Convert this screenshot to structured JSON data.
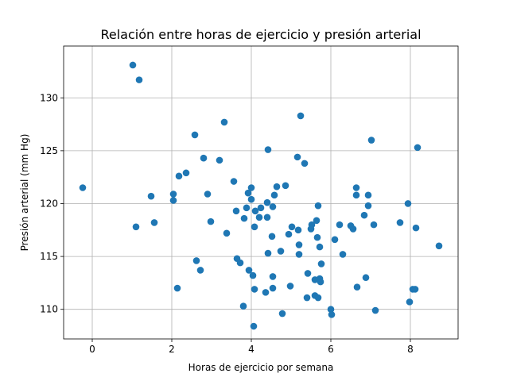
{
  "chart_data": {
    "type": "scatter",
    "title": "Relación entre horas de ejercicio y presión arterial",
    "xlabel": "Horas de ejercicio por semana",
    "ylabel": "Presión arterial (mm Hg)",
    "xlim": [
      -0.72,
      9.2
    ],
    "ylim": [
      107.2,
      134.9
    ],
    "x_ticks": [
      0,
      2,
      4,
      6,
      8
    ],
    "y_ticks": [
      110,
      115,
      120,
      125,
      130
    ],
    "grid": true,
    "marker_color": "#1f77b4",
    "points": [
      {
        "x": 1.02,
        "y": 133.1
      },
      {
        "x": 1.18,
        "y": 131.7
      },
      {
        "x": -0.24,
        "y": 121.5
      },
      {
        "x": 1.1,
        "y": 117.8
      },
      {
        "x": 1.48,
        "y": 120.7
      },
      {
        "x": 1.56,
        "y": 118.2
      },
      {
        "x": 2.04,
        "y": 120.9
      },
      {
        "x": 2.04,
        "y": 120.3
      },
      {
        "x": 2.18,
        "y": 122.6
      },
      {
        "x": 2.36,
        "y": 122.9
      },
      {
        "x": 2.14,
        "y": 112.0
      },
      {
        "x": 2.58,
        "y": 126.5
      },
      {
        "x": 2.62,
        "y": 114.6
      },
      {
        "x": 2.72,
        "y": 113.7
      },
      {
        "x": 2.8,
        "y": 124.3
      },
      {
        "x": 2.9,
        "y": 120.9
      },
      {
        "x": 2.98,
        "y": 118.3
      },
      {
        "x": 3.2,
        "y": 124.1
      },
      {
        "x": 3.32,
        "y": 127.7
      },
      {
        "x": 3.38,
        "y": 117.2
      },
      {
        "x": 3.56,
        "y": 122.1
      },
      {
        "x": 3.62,
        "y": 119.3
      },
      {
        "x": 3.64,
        "y": 114.8
      },
      {
        "x": 3.72,
        "y": 114.4
      },
      {
        "x": 3.8,
        "y": 110.3
      },
      {
        "x": 3.82,
        "y": 118.6
      },
      {
        "x": 3.88,
        "y": 119.6
      },
      {
        "x": 3.92,
        "y": 121.0
      },
      {
        "x": 3.94,
        "y": 113.7
      },
      {
        "x": 4.0,
        "y": 121.5
      },
      {
        "x": 4.0,
        "y": 120.4
      },
      {
        "x": 4.04,
        "y": 113.2
      },
      {
        "x": 4.06,
        "y": 108.4
      },
      {
        "x": 4.08,
        "y": 111.9
      },
      {
        "x": 4.08,
        "y": 117.8
      },
      {
        "x": 4.1,
        "y": 119.3
      },
      {
        "x": 4.2,
        "y": 118.7
      },
      {
        "x": 4.24,
        "y": 119.6
      },
      {
        "x": 4.36,
        "y": 111.6
      },
      {
        "x": 4.4,
        "y": 118.7
      },
      {
        "x": 4.4,
        "y": 120.1
      },
      {
        "x": 4.42,
        "y": 125.1
      },
      {
        "x": 4.42,
        "y": 115.3
      },
      {
        "x": 4.52,
        "y": 116.9
      },
      {
        "x": 4.54,
        "y": 113.1
      },
      {
        "x": 4.54,
        "y": 112.0
      },
      {
        "x": 4.54,
        "y": 119.7
      },
      {
        "x": 4.58,
        "y": 120.8
      },
      {
        "x": 4.64,
        "y": 121.6
      },
      {
        "x": 4.74,
        "y": 115.5
      },
      {
        "x": 4.78,
        "y": 109.6
      },
      {
        "x": 4.86,
        "y": 121.7
      },
      {
        "x": 4.94,
        "y": 117.1
      },
      {
        "x": 4.98,
        "y": 112.2
      },
      {
        "x": 5.02,
        "y": 117.8
      },
      {
        "x": 5.16,
        "y": 124.4
      },
      {
        "x": 5.18,
        "y": 117.5
      },
      {
        "x": 5.2,
        "y": 116.1
      },
      {
        "x": 5.2,
        "y": 115.2
      },
      {
        "x": 5.24,
        "y": 128.3
      },
      {
        "x": 5.34,
        "y": 123.8
      },
      {
        "x": 5.4,
        "y": 111.1
      },
      {
        "x": 5.42,
        "y": 113.4
      },
      {
        "x": 5.5,
        "y": 117.6
      },
      {
        "x": 5.52,
        "y": 118.0
      },
      {
        "x": 5.6,
        "y": 112.8
      },
      {
        "x": 5.6,
        "y": 111.3
      },
      {
        "x": 5.64,
        "y": 118.4
      },
      {
        "x": 5.66,
        "y": 116.8
      },
      {
        "x": 5.68,
        "y": 111.1
      },
      {
        "x": 5.68,
        "y": 119.8
      },
      {
        "x": 5.72,
        "y": 112.9
      },
      {
        "x": 5.72,
        "y": 115.9
      },
      {
        "x": 5.74,
        "y": 112.6
      },
      {
        "x": 5.76,
        "y": 114.3
      },
      {
        "x": 6.0,
        "y": 110.0
      },
      {
        "x": 6.02,
        "y": 109.5
      },
      {
        "x": 6.1,
        "y": 116.6
      },
      {
        "x": 6.22,
        "y": 118.0
      },
      {
        "x": 6.3,
        "y": 115.2
      },
      {
        "x": 6.5,
        "y": 117.9
      },
      {
        "x": 6.56,
        "y": 117.6
      },
      {
        "x": 6.64,
        "y": 121.5
      },
      {
        "x": 6.64,
        "y": 120.8
      },
      {
        "x": 6.66,
        "y": 112.1
      },
      {
        "x": 6.84,
        "y": 118.9
      },
      {
        "x": 6.88,
        "y": 113.0
      },
      {
        "x": 6.94,
        "y": 120.8
      },
      {
        "x": 6.94,
        "y": 119.8
      },
      {
        "x": 7.02,
        "y": 126.0
      },
      {
        "x": 7.08,
        "y": 118.0
      },
      {
        "x": 7.12,
        "y": 109.9
      },
      {
        "x": 7.74,
        "y": 118.2
      },
      {
        "x": 7.94,
        "y": 120.0
      },
      {
        "x": 7.98,
        "y": 110.7
      },
      {
        "x": 8.06,
        "y": 111.9
      },
      {
        "x": 8.12,
        "y": 111.9
      },
      {
        "x": 8.14,
        "y": 117.7
      },
      {
        "x": 8.18,
        "y": 125.3
      },
      {
        "x": 8.72,
        "y": 116.0
      }
    ]
  }
}
